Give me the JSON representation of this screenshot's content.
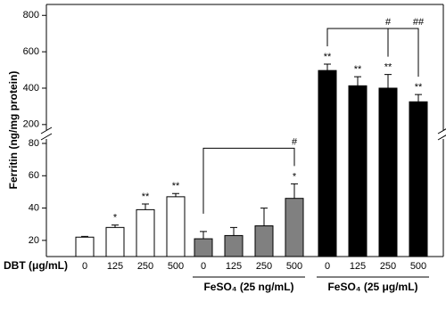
{
  "chart_data": {
    "type": "bar",
    "ylabel": "Ferritin (ng/mg protein)",
    "xlabel": "DBT (μg/mL)",
    "categories": [
      "0",
      "125",
      "250",
      "500"
    ],
    "ylim": [
      10,
      80
    ],
    "yticks": [
      20,
      40,
      60,
      80
    ],
    "ylim_upper": [
      160,
      860
    ],
    "yticks_upper": [
      200,
      400,
      600,
      800
    ],
    "series": [
      {
        "color": "#ffffff",
        "values": [
          22,
          28,
          39,
          47
        ],
        "errors": [
          0.5,
          1.5,
          3.5,
          2
        ],
        "stars": [
          {
            "bar": 1,
            "text": "*"
          },
          {
            "bar": 2,
            "text": "**"
          },
          {
            "bar": 3,
            "text": "**"
          }
        ],
        "brackets": []
      },
      {
        "name": "FeSO₄ (25 ng/mL)",
        "color": "#808080",
        "values": [
          21,
          23,
          29,
          46
        ],
        "errors": [
          4.5,
          5,
          11,
          9
        ],
        "stars": [
          {
            "bar": 3,
            "text": "*"
          }
        ],
        "brackets": [
          {
            "from": 0,
            "to": 3,
            "label": "#"
          }
        ]
      },
      {
        "name": "FeSO₄ (25 μg/mL)",
        "color": "#000000",
        "values": [
          497,
          413,
          400,
          325
        ],
        "errors": [
          35,
          50,
          75,
          40
        ],
        "stars": [
          {
            "bar": 0,
            "text": "**"
          },
          {
            "bar": 1,
            "text": "**"
          },
          {
            "bar": 2,
            "text": "**"
          },
          {
            "bar": 3,
            "text": "**"
          }
        ],
        "brackets": [
          {
            "from": 0,
            "to": 2,
            "label": "#"
          },
          {
            "from": 0,
            "to": 3,
            "label": "##"
          }
        ]
      }
    ]
  }
}
